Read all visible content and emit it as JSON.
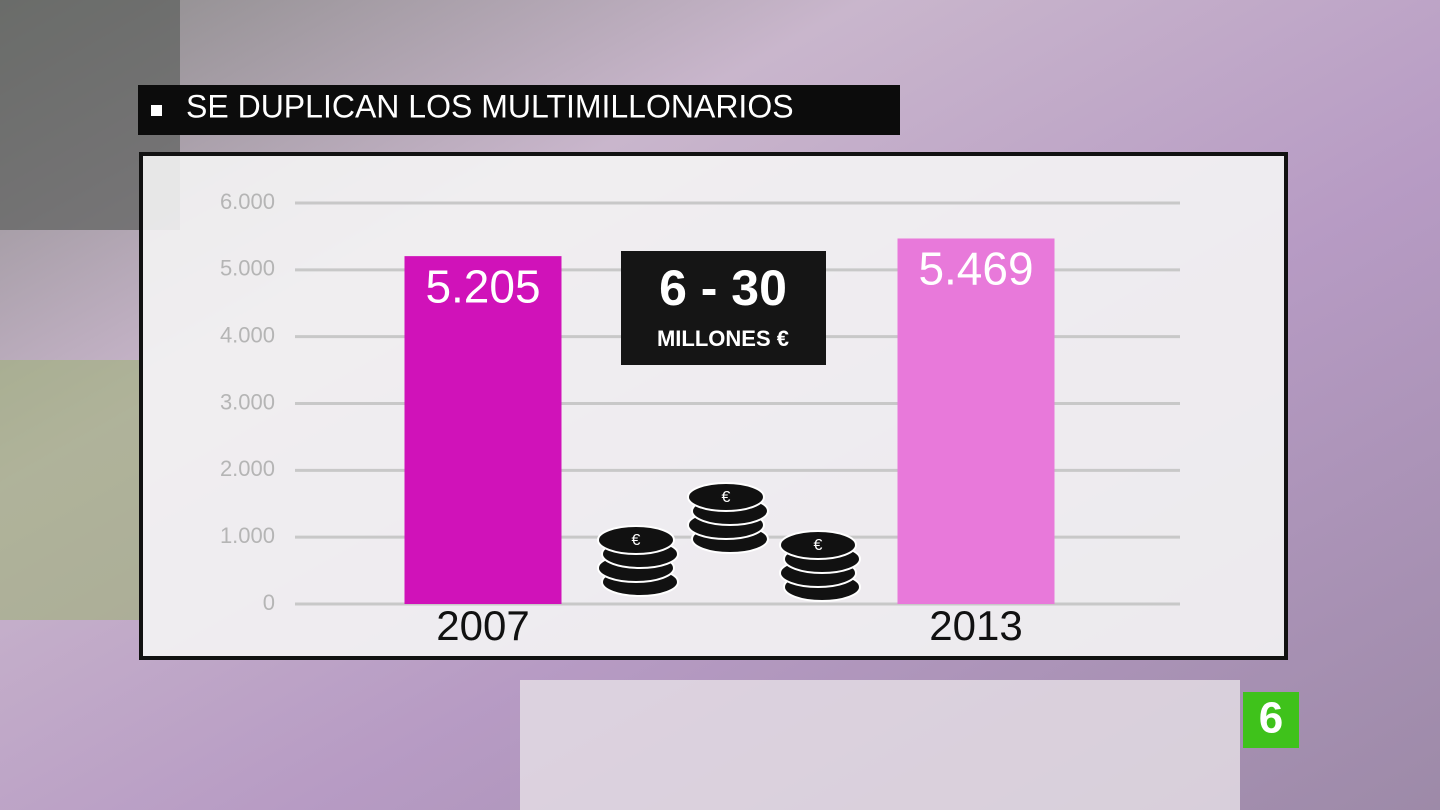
{
  "chart_data": {
    "type": "bar",
    "title": "SE DUPLICAN LOS MULTIMILLONARIOS",
    "categories": [
      "2007",
      "2013"
    ],
    "values": [
      5205,
      5469
    ],
    "value_labels": [
      "5.205",
      "5.469"
    ],
    "colors": [
      "#d012b9",
      "#e879da"
    ],
    "ylim": [
      0,
      6000
    ],
    "yticks": [
      0,
      {
        "value": 1000,
        "label": "1.000"
      },
      {
        "value": 2000,
        "label": "2.000"
      },
      {
        "value": 3000,
        "label": "3.000"
      },
      {
        "value": 4000,
        "label": "4.000"
      },
      {
        "value": 5000,
        "label": "5.000"
      },
      {
        "value": 6000,
        "label": "6.000"
      }
    ],
    "grid": true,
    "annotation": {
      "title": "6 - 30",
      "subtitle": "MILLONES €"
    },
    "channel_logo": "6"
  }
}
